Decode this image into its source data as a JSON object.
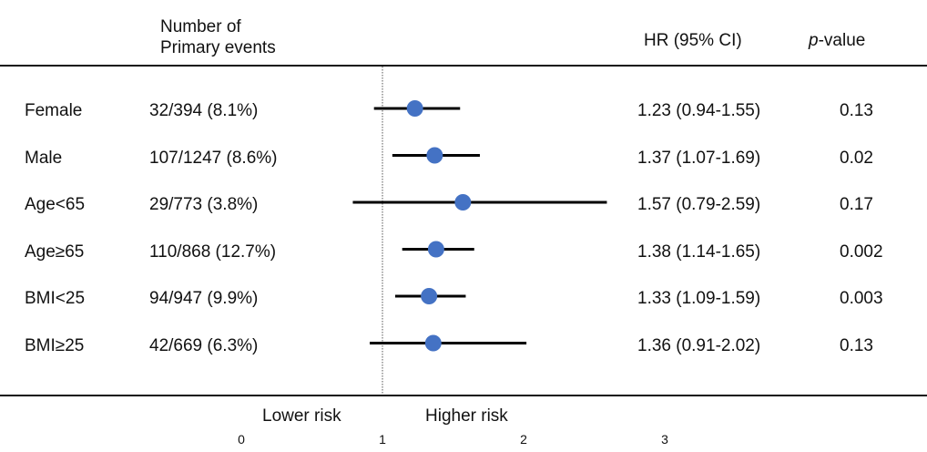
{
  "chart_data": {
    "type": "forest",
    "columns": {
      "events_header_line1": "Number of",
      "events_header_line2": "Primary events",
      "hr_header": "HR (95% CI)",
      "p_header_italic": "p",
      "p_header_rest": "-value"
    },
    "reference_line": 1,
    "xlim": [
      0,
      3
    ],
    "xticks": [
      "0",
      "1",
      "2",
      "3"
    ],
    "direction_labels": {
      "lower": "Lower risk",
      "higher": "Higher risk"
    },
    "rows": [
      {
        "label": "Female",
        "events": "32/394 (8.1%)",
        "hr": 1.23,
        "lo": 0.94,
        "hi": 1.55,
        "hr_text": "1.23 (0.94-1.55)",
        "p": "0.13"
      },
      {
        "label": "Male",
        "events": "107/1247 (8.6%)",
        "hr": 1.37,
        "lo": 1.07,
        "hi": 1.69,
        "hr_text": "1.37 (1.07-1.69)",
        "p": "0.02"
      },
      {
        "label": "Age<65",
        "events": "29/773 (3.8%)",
        "hr": 1.57,
        "lo": 0.79,
        "hi": 2.59,
        "hr_text": "1.57 (0.79-2.59)",
        "p": "0.17"
      },
      {
        "label": "Age≥65",
        "events": "110/868 (12.7%)",
        "hr": 1.38,
        "lo": 1.14,
        "hi": 1.65,
        "hr_text": "1.38 (1.14-1.65)",
        "p": "0.002"
      },
      {
        "label": "BMI<25",
        "events": "94/947 (9.9%)",
        "hr": 1.33,
        "lo": 1.09,
        "hi": 1.59,
        "hr_text": "1.33 (1.09-1.59)",
        "p": "0.003"
      },
      {
        "label": "BMI≥25",
        "events": "42/669 (6.3%)",
        "hr": 1.36,
        "lo": 0.91,
        "hi": 2.02,
        "hr_text": "1.36 (0.91-2.02)",
        "p": "0.13"
      }
    ],
    "colors": {
      "point": "#4472C4",
      "line": "#000000"
    }
  }
}
